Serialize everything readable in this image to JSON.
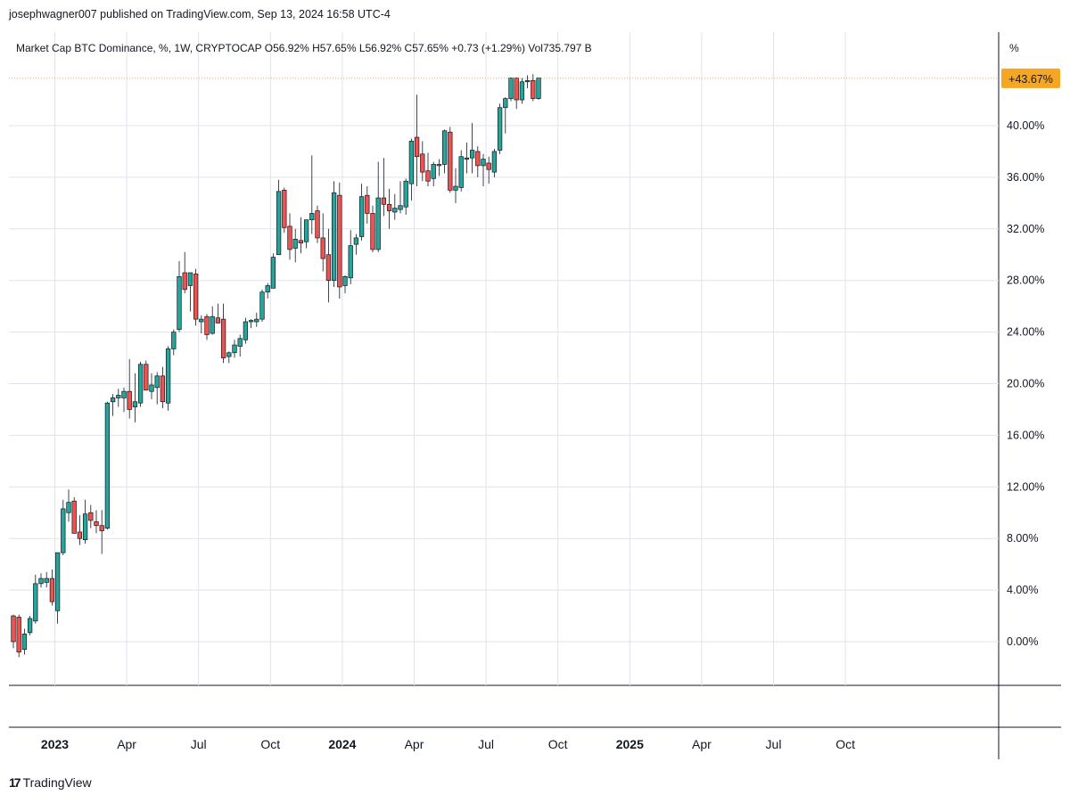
{
  "header": {
    "published_line": "josephwagner007 published on TradingView.com, Sep 13, 2024 16:58 UTC-4"
  },
  "legend": {
    "text": "Market Cap BTC Dominance, %, 1W, CRYPTOCAP  O56.92%  H57.65%  L56.92%  C57.65%  +0.73 (+1.29%)  Vol735.797 B"
  },
  "axis": {
    "unit": "%",
    "current_price_label": "+43.67%"
  },
  "footer": {
    "brand_mark": "17",
    "brand_name": "TradingView"
  },
  "colors": {
    "up": "#26a69a",
    "down": "#ef5350",
    "grid": "#e0e3eb",
    "price_tag": "#f5a623",
    "price_line": "#f5a623"
  },
  "chart_data": {
    "type": "candlestick",
    "timeframe": "1W",
    "y_axis": {
      "ticks": [
        "0.00%",
        "4.00%",
        "8.00%",
        "12.00%",
        "16.00%",
        "20.00%",
        "24.00%",
        "28.00%",
        "32.00%",
        "36.00%",
        "40.00%"
      ],
      "tick_values": [
        0,
        4,
        8,
        12,
        16,
        20,
        24,
        28,
        32,
        36,
        40
      ],
      "range": [
        -3.5,
        44.5
      ]
    },
    "x_axis": {
      "labels": [
        "2023",
        "Apr",
        "Jul",
        "Oct",
        "2024",
        "Apr",
        "Jul",
        "Oct",
        "2025",
        "Apr",
        "Jul",
        "Oct"
      ],
      "bold_labels": [
        "2023",
        "2024",
        "2025"
      ],
      "label_week_index": [
        7.5,
        20.5,
        33.5,
        46.5,
        59.5,
        72.5,
        85.5,
        98.5,
        111.5,
        124.5,
        137.5,
        150.5
      ]
    },
    "current_value": 43.67,
    "candles": [
      {
        "o": 2.0,
        "h": 2.1,
        "l": -0.5,
        "c": 0.0
      },
      {
        "o": 1.9,
        "h": 2.1,
        "l": -1.2,
        "c": -0.8
      },
      {
        "o": -0.6,
        "h": 1.0,
        "l": -1.0,
        "c": 0.6
      },
      {
        "o": 0.7,
        "h": 2.0,
        "l": 0.5,
        "c": 1.8
      },
      {
        "o": 1.6,
        "h": 5.2,
        "l": 1.4,
        "c": 4.5
      },
      {
        "o": 4.5,
        "h": 5.3,
        "l": 4.2,
        "c": 4.9
      },
      {
        "o": 4.6,
        "h": 5.4,
        "l": 4.2,
        "c": 4.9
      },
      {
        "o": 4.9,
        "h": 5.6,
        "l": 2.8,
        "c": 3.1
      },
      {
        "o": 2.4,
        "h": 6.9,
        "l": 1.4,
        "c": 6.9
      },
      {
        "o": 6.9,
        "h": 11.0,
        "l": 6.7,
        "c": 10.3
      },
      {
        "o": 10.0,
        "h": 11.8,
        "l": 9.3,
        "c": 10.8
      },
      {
        "o": 10.9,
        "h": 11.2,
        "l": 8.5,
        "c": 8.4
      },
      {
        "o": 8.5,
        "h": 9.8,
        "l": 7.5,
        "c": 8.0
      },
      {
        "o": 7.9,
        "h": 11.0,
        "l": 7.6,
        "c": 9.9
      },
      {
        "o": 10.0,
        "h": 10.6,
        "l": 8.8,
        "c": 9.4
      },
      {
        "o": 9.3,
        "h": 10.2,
        "l": 8.4,
        "c": 9.0
      },
      {
        "o": 9.0,
        "h": 10.2,
        "l": 6.8,
        "c": 8.6
      },
      {
        "o": 8.8,
        "h": 18.6,
        "l": 8.7,
        "c": 18.5
      },
      {
        "o": 18.6,
        "h": 19.2,
        "l": 17.5,
        "c": 18.9
      },
      {
        "o": 18.9,
        "h": 19.6,
        "l": 18.2,
        "c": 19.1
      },
      {
        "o": 18.9,
        "h": 19.7,
        "l": 17.8,
        "c": 19.4
      },
      {
        "o": 19.4,
        "h": 21.9,
        "l": 17.3,
        "c": 18.0
      },
      {
        "o": 18.2,
        "h": 20.8,
        "l": 17.0,
        "c": 18.6
      },
      {
        "o": 18.5,
        "h": 21.7,
        "l": 18.2,
        "c": 21.5
      },
      {
        "o": 21.5,
        "h": 21.8,
        "l": 19.6,
        "c": 19.5
      },
      {
        "o": 19.4,
        "h": 20.8,
        "l": 18.8,
        "c": 19.9
      },
      {
        "o": 19.7,
        "h": 20.9,
        "l": 18.4,
        "c": 20.6
      },
      {
        "o": 20.6,
        "h": 21.3,
        "l": 18.1,
        "c": 18.6
      },
      {
        "o": 18.5,
        "h": 22.9,
        "l": 17.9,
        "c": 22.7
      },
      {
        "o": 22.7,
        "h": 24.2,
        "l": 22.2,
        "c": 24.0
      },
      {
        "o": 24.2,
        "h": 29.5,
        "l": 24.0,
        "c": 28.3
      },
      {
        "o": 28.6,
        "h": 30.2,
        "l": 27.0,
        "c": 27.3
      },
      {
        "o": 27.6,
        "h": 28.6,
        "l": 25.6,
        "c": 28.6
      },
      {
        "o": 28.5,
        "h": 28.9,
        "l": 24.5,
        "c": 25.0
      },
      {
        "o": 24.8,
        "h": 25.3,
        "l": 23.9,
        "c": 25.0
      },
      {
        "o": 25.2,
        "h": 25.4,
        "l": 23.4,
        "c": 23.8
      },
      {
        "o": 23.9,
        "h": 26.0,
        "l": 23.8,
        "c": 25.2
      },
      {
        "o": 25.1,
        "h": 26.2,
        "l": 24.8,
        "c": 24.7
      },
      {
        "o": 25.0,
        "h": 26.2,
        "l": 21.6,
        "c": 22.0
      },
      {
        "o": 22.1,
        "h": 22.5,
        "l": 21.6,
        "c": 22.4
      },
      {
        "o": 22.4,
        "h": 23.4,
        "l": 22.0,
        "c": 23.0
      },
      {
        "o": 22.9,
        "h": 23.8,
        "l": 22.1,
        "c": 23.5
      },
      {
        "o": 23.4,
        "h": 25.1,
        "l": 23.1,
        "c": 24.8
      },
      {
        "o": 24.8,
        "h": 25.0,
        "l": 24.3,
        "c": 24.9
      },
      {
        "o": 24.8,
        "h": 25.5,
        "l": 24.4,
        "c": 25.0
      },
      {
        "o": 25.0,
        "h": 27.3,
        "l": 24.8,
        "c": 27.1
      },
      {
        "o": 27.1,
        "h": 27.8,
        "l": 26.6,
        "c": 27.6
      },
      {
        "o": 27.4,
        "h": 30.1,
        "l": 27.4,
        "c": 29.8
      },
      {
        "o": 30.0,
        "h": 35.8,
        "l": 30.0,
        "c": 34.9
      },
      {
        "o": 35.0,
        "h": 35.2,
        "l": 31.7,
        "c": 32.1
      },
      {
        "o": 32.2,
        "h": 33.2,
        "l": 29.6,
        "c": 30.4
      },
      {
        "o": 30.5,
        "h": 32.0,
        "l": 29.4,
        "c": 31.2
      },
      {
        "o": 31.1,
        "h": 32.9,
        "l": 30.1,
        "c": 30.9
      },
      {
        "o": 31.0,
        "h": 32.5,
        "l": 30.5,
        "c": 32.7
      },
      {
        "o": 32.7,
        "h": 37.7,
        "l": 31.6,
        "c": 33.2
      },
      {
        "o": 33.4,
        "h": 33.8,
        "l": 30.9,
        "c": 31.3
      },
      {
        "o": 31.3,
        "h": 33.2,
        "l": 28.7,
        "c": 29.7
      },
      {
        "o": 30.0,
        "h": 32.0,
        "l": 26.3,
        "c": 28.0
      },
      {
        "o": 28.0,
        "h": 35.7,
        "l": 27.5,
        "c": 34.8
      },
      {
        "o": 34.6,
        "h": 35.6,
        "l": 26.6,
        "c": 27.5
      },
      {
        "o": 27.6,
        "h": 28.4,
        "l": 27.0,
        "c": 28.3
      },
      {
        "o": 28.2,
        "h": 31.9,
        "l": 27.7,
        "c": 30.7
      },
      {
        "o": 30.8,
        "h": 31.6,
        "l": 30.0,
        "c": 31.3
      },
      {
        "o": 31.4,
        "h": 35.5,
        "l": 31.1,
        "c": 34.5
      },
      {
        "o": 34.6,
        "h": 35.3,
        "l": 32.4,
        "c": 33.2
      },
      {
        "o": 33.2,
        "h": 33.8,
        "l": 30.2,
        "c": 30.4
      },
      {
        "o": 30.4,
        "h": 37.2,
        "l": 30.2,
        "c": 34.4
      },
      {
        "o": 34.4,
        "h": 37.5,
        "l": 33.0,
        "c": 33.9
      },
      {
        "o": 33.9,
        "h": 35.1,
        "l": 32.0,
        "c": 33.4
      },
      {
        "o": 33.3,
        "h": 34.7,
        "l": 32.7,
        "c": 33.6
      },
      {
        "o": 33.5,
        "h": 35.7,
        "l": 33.2,
        "c": 33.8
      },
      {
        "o": 33.7,
        "h": 35.9,
        "l": 33.1,
        "c": 35.7
      },
      {
        "o": 35.5,
        "h": 39.0,
        "l": 34.2,
        "c": 38.8
      },
      {
        "o": 39.1,
        "h": 42.4,
        "l": 35.3,
        "c": 37.6
      },
      {
        "o": 37.8,
        "h": 38.8,
        "l": 35.7,
        "c": 36.4
      },
      {
        "o": 36.5,
        "h": 37.9,
        "l": 35.3,
        "c": 35.7
      },
      {
        "o": 35.9,
        "h": 37.2,
        "l": 35.3,
        "c": 37.0
      },
      {
        "o": 37.0,
        "h": 37.4,
        "l": 36.1,
        "c": 36.9
      },
      {
        "o": 37.0,
        "h": 39.7,
        "l": 36.3,
        "c": 39.6
      },
      {
        "o": 39.5,
        "h": 39.9,
        "l": 34.8,
        "c": 35.0
      },
      {
        "o": 35.0,
        "h": 36.7,
        "l": 34.0,
        "c": 35.3
      },
      {
        "o": 35.2,
        "h": 38.1,
        "l": 34.9,
        "c": 37.6
      },
      {
        "o": 37.4,
        "h": 38.7,
        "l": 36.3,
        "c": 37.5
      },
      {
        "o": 37.5,
        "h": 40.2,
        "l": 36.3,
        "c": 38.1
      },
      {
        "o": 38.0,
        "h": 38.4,
        "l": 36.0,
        "c": 36.9
      },
      {
        "o": 36.9,
        "h": 37.8,
        "l": 35.3,
        "c": 37.4
      },
      {
        "o": 37.1,
        "h": 37.6,
        "l": 35.5,
        "c": 36.6
      },
      {
        "o": 36.4,
        "h": 38.2,
        "l": 36.0,
        "c": 38.0
      },
      {
        "o": 38.1,
        "h": 41.7,
        "l": 37.8,
        "c": 41.4
      },
      {
        "o": 41.4,
        "h": 42.2,
        "l": 39.4,
        "c": 42.1
      },
      {
        "o": 42.1,
        "h": 43.7,
        "l": 41.9,
        "c": 43.7
      },
      {
        "o": 43.7,
        "h": 43.7,
        "l": 41.3,
        "c": 42.0
      },
      {
        "o": 42.0,
        "h": 43.7,
        "l": 41.7,
        "c": 43.4
      },
      {
        "o": 43.4,
        "h": 43.9,
        "l": 42.9,
        "c": 43.5
      },
      {
        "o": 43.5,
        "h": 44.0,
        "l": 41.9,
        "c": 42.1
      },
      {
        "o": 42.1,
        "h": 43.7,
        "l": 42.0,
        "c": 43.7
      }
    ]
  }
}
